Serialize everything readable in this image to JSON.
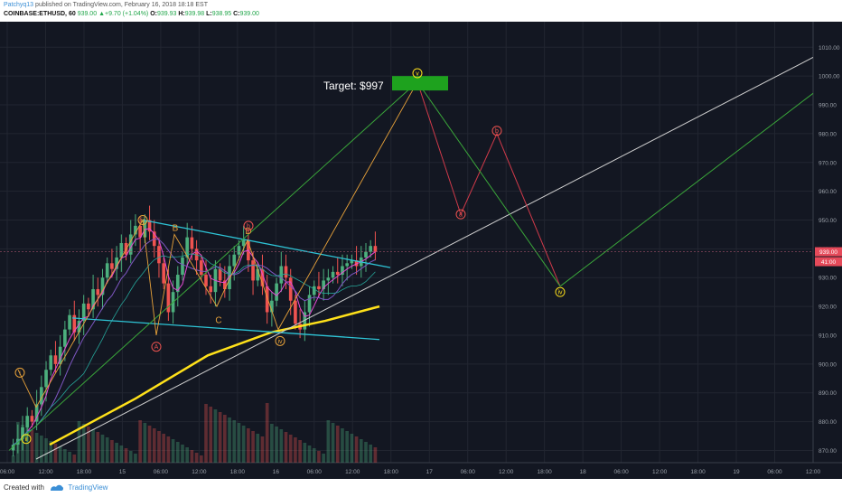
{
  "header": {
    "username": "Patchyq13",
    "published": "published on TradingView.com, February 16, 2018 18:18 EST",
    "symbol": "COINBASE:ETHUSD, 60",
    "last": "939.00",
    "change": "+9.70 (+1.04%)",
    "o_label": "O:",
    "o": "939.93",
    "h_label": "H:",
    "h": "939.98",
    "l_label": "L:",
    "l": "938.95",
    "c_label": "C:",
    "c": "939.00"
  },
  "footer": {
    "created_with": "Created with",
    "brand": "TradingView"
  },
  "colors": {
    "bg": "#131722",
    "up": "#4caf7d",
    "down": "#ef5350",
    "grid": "#222631",
    "cyan": "#2ec4d6",
    "yellow": "#ffe11a",
    "orange": "#e8a23a",
    "green_line": "#3aa63a",
    "red_line": "#d03a4a",
    "white_line": "#d0d0d0",
    "target_box": "#1ea21e"
  },
  "annotations": {
    "target": "Target: $997",
    "labels": [
      "i",
      "ii",
      "iii",
      "iv",
      "v",
      "A",
      "B",
      "C",
      "D",
      "a",
      "b"
    ]
  },
  "chart_data": {
    "type": "candlestick",
    "symbol": "COINBASE:ETHUSD",
    "interval": "60",
    "y_ticks": [
      870,
      880,
      890,
      900,
      910,
      920,
      930,
      940,
      950,
      960,
      970,
      980,
      990,
      1000,
      1010
    ],
    "y_tick_labels": [
      "870.00",
      "880.00",
      "890.00",
      "900.00",
      "910.00",
      "920.00",
      "930.00",
      "940.00",
      "950.00",
      "960.00",
      "970.00",
      "980.00",
      "990.00",
      "1000.00",
      "1010.00"
    ],
    "ylim": [
      867,
      1017
    ],
    "x_tick_labels": [
      "06:00",
      "12:00",
      "18:00",
      "15",
      "06:00",
      "12:00",
      "18:00",
      "16",
      "06:00",
      "12:00",
      "18:00",
      "17",
      "06:00",
      "12:00",
      "18:00",
      "18",
      "06:00",
      "12:00",
      "18:00",
      "19",
      "06:00",
      "12:00"
    ],
    "price_labels": [
      "939.00",
      "41:00"
    ],
    "target_price": 997,
    "closes": [
      872,
      874,
      878,
      882,
      880,
      886,
      892,
      898,
      903,
      900,
      906,
      912,
      917,
      911,
      915,
      921,
      919,
      926,
      924,
      930,
      935,
      933,
      937,
      942,
      938,
      945,
      948,
      944,
      950,
      946,
      941,
      935,
      928,
      918,
      925,
      931,
      937,
      944,
      940,
      936,
      931,
      927,
      925,
      933,
      929,
      926,
      934,
      938,
      941,
      943,
      936,
      929,
      933,
      927,
      918,
      922,
      928,
      934,
      930,
      922,
      914,
      912,
      918,
      924,
      927,
      926,
      929,
      930,
      932,
      931,
      934,
      935,
      936,
      934,
      937,
      939,
      941,
      939
    ]
  }
}
